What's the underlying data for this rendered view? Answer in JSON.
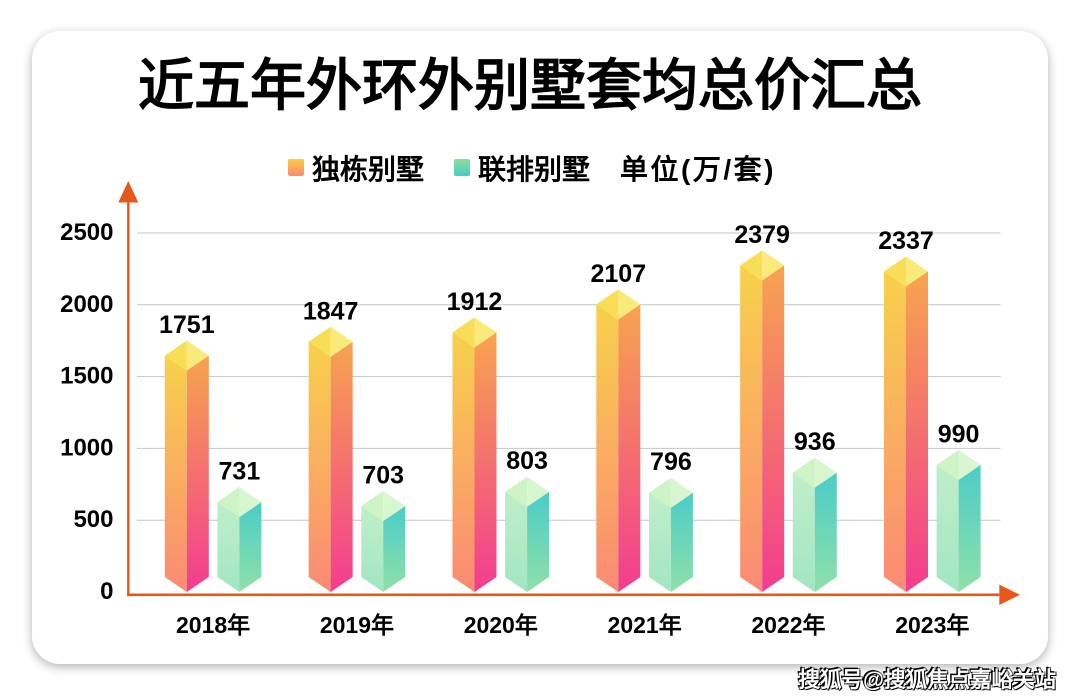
{
  "title": "近五年外环外别墅套均总价汇总",
  "legend": {
    "unit_label": "单位(万/套)"
  },
  "chart_data": {
    "type": "bar",
    "style": "3d-prism",
    "title": "近五年外环外别墅套均总价汇总",
    "unit": "万/套",
    "categories": [
      "2018年",
      "2019年",
      "2020年",
      "2021年",
      "2022年",
      "2023年"
    ],
    "series": [
      {
        "name": "独栋别墅",
        "values": [
          1751,
          1847,
          1912,
          2107,
          2379,
          2337
        ],
        "legend_swatch": [
          "#FACC3F",
          "#F98A74"
        ],
        "faces": {
          "left": [
            "#F8D14B",
            "#FB8A74"
          ],
          "right": [
            "#F7A44F",
            "#F23C90"
          ],
          "top": [
            "#F8DE57",
            "#FAEA79"
          ]
        }
      },
      {
        "name": "联排别墅",
        "values": [
          731,
          703,
          803,
          796,
          936,
          990
        ],
        "legend_swatch": [
          "#8FDE9C",
          "#47CBC3"
        ],
        "faces": {
          "left": [
            "#BFEFC9",
            "#A2E6C2"
          ],
          "right": [
            "#4BCCC8",
            "#90E0A8"
          ],
          "top": [
            "#CEF3C4",
            "#D8F6CF"
          ]
        }
      }
    ],
    "y_ticks": [
      0,
      500,
      1000,
      1500,
      2000,
      2500
    ],
    "ylim": [
      0,
      2500
    ],
    "grid": true,
    "legend_position": "top",
    "axis_color": "#E5571B",
    "grid_color": "#C6C6C6",
    "label_color": "#000000"
  },
  "watermark": "搜狐号@搜狐焦点嘉峪关站"
}
